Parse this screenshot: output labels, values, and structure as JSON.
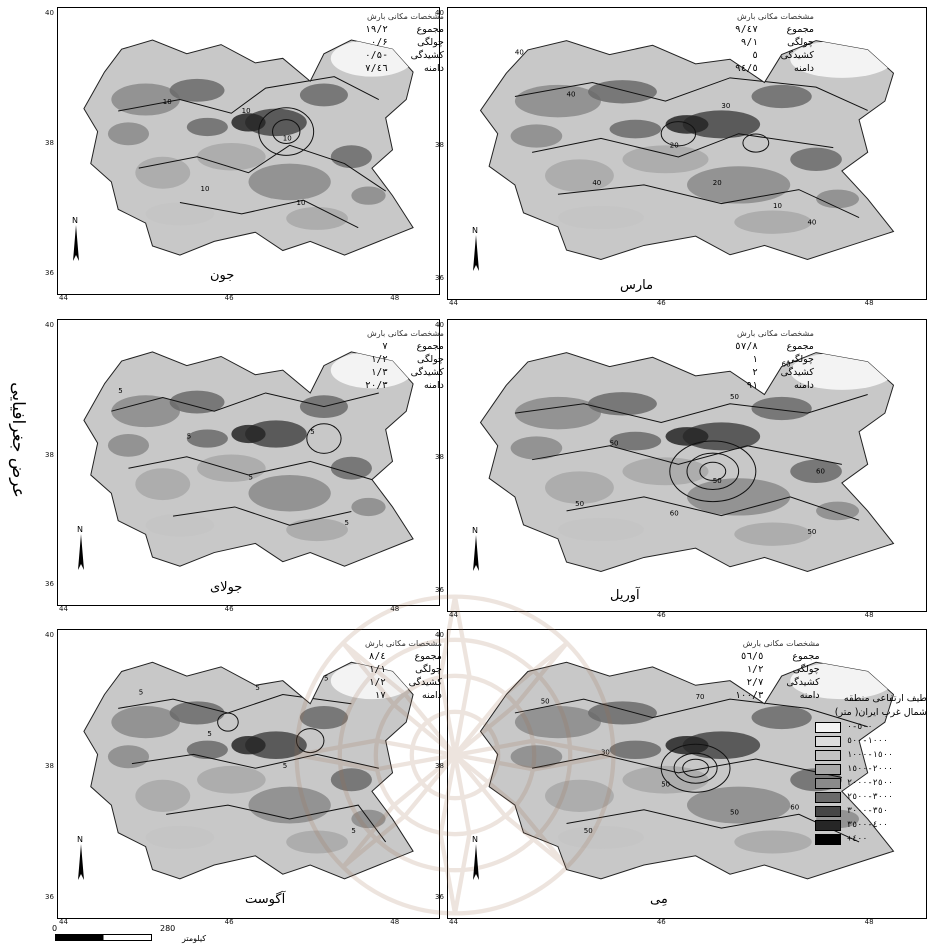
{
  "axis_title": "عرض جغرافیایی",
  "stats_header": "مشخصات مکانی بارش",
  "stat_labels": [
    "مجموع",
    "چولگی",
    "کشیدگی",
    "دامنه"
  ],
  "panels": [
    {
      "month": "جون",
      "values": [
        "۱۹/۲",
        "۰/۶",
        "-۰/۵",
        "٤٦/۷"
      ],
      "lat_ticks": [
        "40",
        "38",
        "36"
      ],
      "lon_ticks": [
        "44",
        "46",
        "48"
      ]
    },
    {
      "month": "مارس",
      "values": [
        "٤۷/٩",
        "۱/٩",
        "٥",
        "٩٤/٥"
      ],
      "lat_ticks": [
        "40",
        "38",
        "36"
      ],
      "lon_ticks": [
        "44",
        "46",
        "48"
      ]
    },
    {
      "month": "جولای",
      "values": [
        "۷",
        "۱/۲",
        "۱/۳",
        "۲۰/۳"
      ],
      "lat_ticks": [
        "40",
        "38",
        "36"
      ],
      "lon_ticks": [
        "44",
        "46",
        "48"
      ]
    },
    {
      "month": "آوریل",
      "values": [
        "٥۷/۸",
        "۱",
        "۲",
        "٩۱"
      ],
      "lat_ticks": [
        "40",
        "38",
        "36"
      ],
      "lon_ticks": [
        "44",
        "46",
        "48"
      ]
    },
    {
      "month": "آگوست",
      "values": [
        "٤/۸",
        "۱/۱",
        "۱/۲",
        "۱۷"
      ],
      "lat_ticks": [
        "40",
        "38",
        "36"
      ],
      "lon_ticks": [
        "44",
        "46",
        "48"
      ]
    },
    {
      "month": "مِی",
      "values": [
        "٥٦/٥",
        "۱/۲",
        "۲/۷",
        "۱۰۰/۳"
      ],
      "lat_ticks": [
        "40",
        "38",
        "36"
      ],
      "lon_ticks": [
        "44",
        "46",
        "48"
      ]
    }
  ],
  "contour_labels": {
    "p0": [
      "10",
      "10",
      "10",
      "10",
      "10"
    ],
    "p1": [
      "40",
      "40",
      "20",
      "30",
      "40",
      "20",
      "10",
      "40"
    ],
    "p2": [
      "5",
      "5",
      "5",
      "5",
      "5"
    ],
    "p3": [
      "60",
      "50",
      "50",
      "50",
      "50",
      "60",
      "60",
      "50"
    ],
    "p4": [
      "5",
      "5",
      "5",
      "5",
      "5",
      "5"
    ],
    "p5": [
      "50",
      "30",
      "70",
      "50",
      "50",
      "50",
      "60"
    ]
  },
  "legend": {
    "title_line1": "طیف ارتفاعی منطقه",
    "title_line2": "شمال غرب ایران( متر)",
    "items": [
      {
        "label": "۰-٥۰۰",
        "color": "#f3f3f3"
      },
      {
        "label": "٥۰۰-۱۰۰۰",
        "color": "#dddddd"
      },
      {
        "label": "۱۰۰۰-۱٥۰۰",
        "color": "#c4c4c4"
      },
      {
        "label": "۱٥۰۰-۲۰۰۰",
        "color": "#a8a8a8"
      },
      {
        "label": "۲۰۰۰-۲٥۰۰",
        "color": "#8a8a8a"
      },
      {
        "label": "۲٥۰۰-۳۰۰۰",
        "color": "#6a6a6a"
      },
      {
        "label": "۳۰۰۰-۳٥۰",
        "color": "#464646"
      },
      {
        "label": "۳٥۰۰-٤۰۰",
        "color": "#262626"
      },
      {
        "label": "+٤۰۰",
        "color": "#000000"
      }
    ]
  },
  "scale": {
    "left_label": "0",
    "right_label": "280",
    "unit": "کیلومتر"
  },
  "north_label": "N"
}
